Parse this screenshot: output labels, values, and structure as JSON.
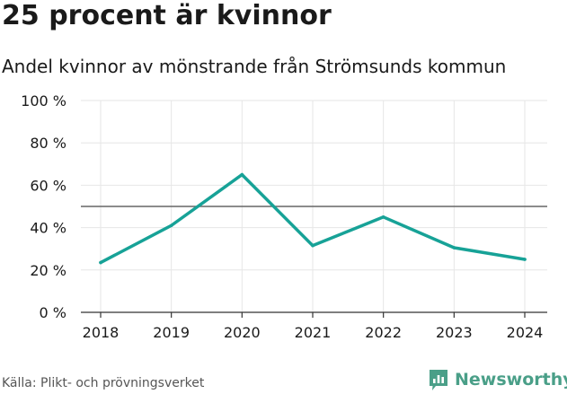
{
  "chart_data": {
    "type": "line",
    "title": "25 procent är kvinnor",
    "subtitle": "Andel kvinnor av mönstrande från Strömsunds kommun",
    "categories": [
      "2018",
      "2019",
      "2020",
      "2021",
      "2022",
      "2023",
      "2024"
    ],
    "series": [
      {
        "name": "Andel kvinnor",
        "values": [
          23.5,
          41,
          65,
          31.5,
          45,
          30.5,
          25
        ]
      }
    ],
    "reference_line": 50,
    "ylim": [
      0,
      100
    ],
    "yticks": [
      0,
      20,
      40,
      60,
      80,
      100
    ],
    "ytick_labels": [
      "0 %",
      "20 %",
      "40 %",
      "60 %",
      "80 %",
      "100 %"
    ],
    "grid": true,
    "xlabel": "",
    "ylabel": ""
  },
  "source": "Källa: Plikt- och prövningsverket",
  "brand": "Newsworthy",
  "colors": {
    "line": "#17a297",
    "reference": "#666666",
    "grid": "#e6e6e6",
    "brand": "#4a9f88"
  }
}
